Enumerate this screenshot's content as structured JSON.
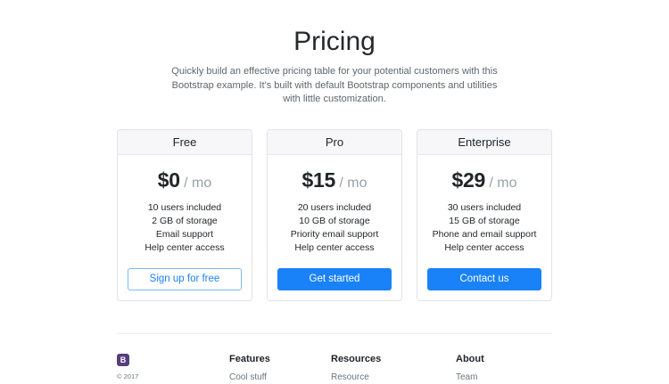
{
  "header": {
    "title": "Pricing",
    "subtitle_lines": [
      "Quickly build an effective pricing table for your potential customers with this",
      "Bootstrap example. It's built with default Bootstrap components and utilities",
      "with little customization."
    ]
  },
  "plans": [
    {
      "name": "Free",
      "price": "$0",
      "period": "/ mo",
      "features": [
        "10 users included",
        "2 GB of storage",
        "Email support",
        "Help center access"
      ],
      "cta": "Sign up for free"
    },
    {
      "name": "Pro",
      "price": "$15",
      "period": "/ mo",
      "features": [
        "20 users included",
        "10 GB of storage",
        "Priority email support",
        "Help center access"
      ],
      "cta": "Get started"
    },
    {
      "name": "Enterprise",
      "price": "$29",
      "period": "/ mo",
      "features": [
        "30 users included",
        "15 GB of storage",
        "Phone and email support",
        "Help center access"
      ],
      "cta": "Contact us"
    }
  ],
  "footer": {
    "logo_letter": "B",
    "copyright": "© 2017",
    "columns": [
      {
        "heading": "Features",
        "links": [
          "Cool stuff"
        ]
      },
      {
        "heading": "Resources",
        "links": [
          "Resource"
        ]
      },
      {
        "heading": "About",
        "links": [
          "Team"
        ]
      }
    ]
  },
  "colors": {
    "primary": "#1a82f8",
    "outline_button_border": "#7db8f9",
    "card_header_bg": "#f7f7f9",
    "bootstrap_purple": "#563d7c",
    "muted_text": "#6c757d"
  }
}
